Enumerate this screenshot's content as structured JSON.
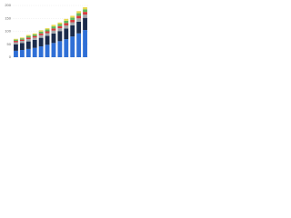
{
  "chart_data": {
    "type": "stacked-bar",
    "categories": [
      null,
      null,
      null,
      null,
      null,
      null,
      null,
      null,
      null,
      null,
      null,
      null
    ],
    "series": [
      {
        "color": "#2f6fd6",
        "values": [
          25,
          28,
          32,
          36,
          42,
          48,
          55,
          62,
          70,
          80,
          92,
          105
        ]
      },
      {
        "color": "#1b2b4b",
        "values": [
          25,
          27,
          29,
          31,
          33,
          35,
          37,
          39,
          41,
          43,
          45,
          47
        ]
      },
      {
        "color": "#a3a6aa",
        "values": [
          8,
          8,
          9,
          9,
          10,
          10,
          11,
          11,
          12,
          12,
          13,
          13
        ]
      },
      {
        "color": "#d63a3a",
        "values": [
          5,
          5,
          6,
          6,
          7,
          7,
          8,
          8,
          9,
          9,
          10,
          10
        ]
      },
      {
        "color": "#5fb65a",
        "values": [
          5,
          5,
          6,
          6,
          7,
          7,
          8,
          8,
          9,
          9,
          10,
          10
        ]
      },
      {
        "color": "#e8d84f",
        "values": [
          3,
          3,
          4,
          4,
          5,
          5,
          6,
          6,
          7,
          7,
          8,
          8
        ]
      }
    ],
    "ylim": [
      0,
      200
    ],
    "yticks": [
      0,
      50,
      100,
      150,
      200
    ],
    "grid": true
  }
}
